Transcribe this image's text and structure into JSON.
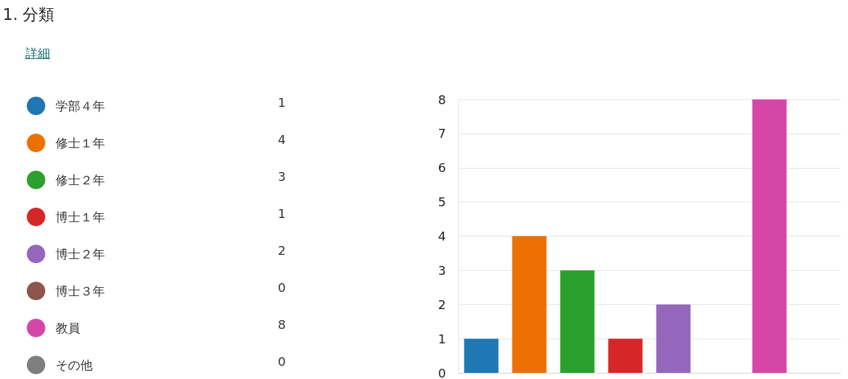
{
  "chart_data": {
    "type": "bar",
    "title": "1. 分類",
    "annotations": [
      "詳細",
      "1",
      "4",
      "3",
      "1",
      "2",
      "0",
      "8",
      "0"
    ],
    "categories": [
      null
    ],
    "series": [
      {
        "name": "学部４年",
        "color": "#1f77b4",
        "values": [
          1
        ]
      },
      {
        "name": "修士１年",
        "color": "#ed7004",
        "values": [
          4
        ]
      },
      {
        "name": "修士２年",
        "color": "#2ca02c",
        "values": [
          3
        ]
      },
      {
        "name": "博士１年",
        "color": "#d62728",
        "values": [
          1
        ]
      },
      {
        "name": "博士２年",
        "color": "#9467bd",
        "values": [
          2
        ]
      },
      {
        "name": "博士３年",
        "color": "#8c564b",
        "values": [
          0
        ]
      },
      {
        "name": "教員",
        "color": "#d546a8",
        "values": [
          8
        ]
      },
      {
        "name": "その他",
        "color": "#7f7f7f",
        "values": [
          0
        ]
      }
    ],
    "ylim": [
      0,
      8
    ],
    "yticks": [
      0,
      1,
      2,
      3,
      4,
      5,
      6,
      7,
      8
    ],
    "grid": "y",
    "legend": "left",
    "tick_labels": "y"
  }
}
